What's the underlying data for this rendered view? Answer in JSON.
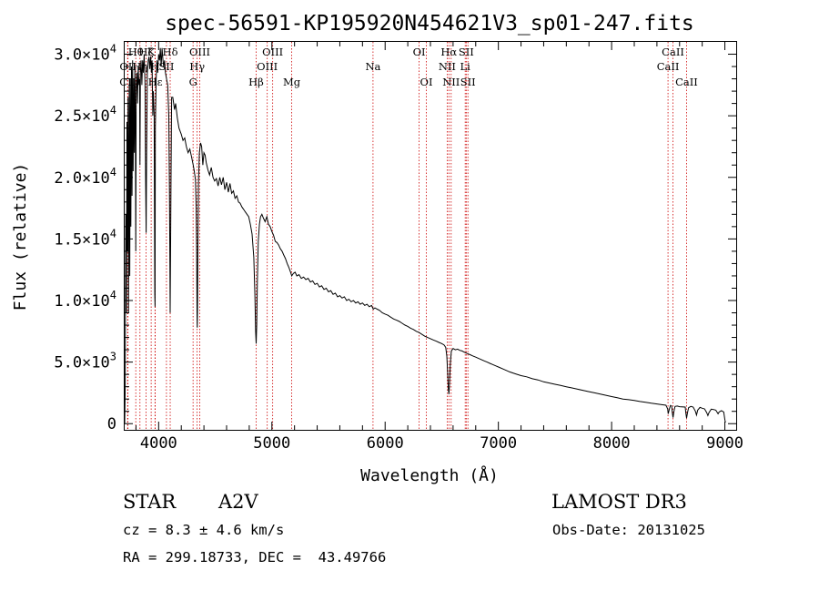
{
  "chart_data": {
    "type": "line",
    "title": "spec-56591-KP195920N454621V3_sp01-247.fits",
    "xlabel": "Wavelength (Å)",
    "ylabel": "Flux (relative)",
    "xlim": [
      3700,
      9100
    ],
    "ylim": [
      -500,
      31000
    ],
    "x_ticks": [
      4000,
      5000,
      6000,
      7000,
      8000,
      9000
    ],
    "x_tick_labels": [
      "4000",
      "5000",
      "6000",
      "7000",
      "8000",
      "9000"
    ],
    "y_ticks": [
      {
        "value": 0,
        "mantissa": "0",
        "exp": ""
      },
      {
        "value": 5000,
        "mantissa": "5.0×10",
        "exp": "3"
      },
      {
        "value": 10000,
        "mantissa": "1.0×10",
        "exp": "4"
      },
      {
        "value": 15000,
        "mantissa": "1.5×10",
        "exp": "4"
      },
      {
        "value": 20000,
        "mantissa": "2.0×10",
        "exp": "4"
      },
      {
        "value": 25000,
        "mantissa": "2.5×10",
        "exp": "4"
      },
      {
        "value": 30000,
        "mantissa": "3.0×10",
        "exp": "4"
      }
    ],
    "spectrum": [
      [
        3700,
        0
      ],
      [
        3705,
        3000
      ],
      [
        3710,
        17000
      ],
      [
        3715,
        9000
      ],
      [
        3720,
        24500
      ],
      [
        3725,
        14000
      ],
      [
        3730,
        26500
      ],
      [
        3734,
        9000
      ],
      [
        3740,
        27500
      ],
      [
        3745,
        12000
      ],
      [
        3750,
        28000
      ],
      [
        3755,
        16000
      ],
      [
        3760,
        29000
      ],
      [
        3765,
        18500
      ],
      [
        3770,
        29500
      ],
      [
        3775,
        20500
      ],
      [
        3780,
        28000
      ],
      [
        3785,
        22000
      ],
      [
        3790,
        29000
      ],
      [
        3795,
        23000
      ],
      [
        3798,
        14000
      ],
      [
        3802,
        27500
      ],
      [
        3808,
        28500
      ],
      [
        3813,
        26000
      ],
      [
        3820,
        29000
      ],
      [
        3826,
        27500
      ],
      [
        3832,
        28000
      ],
      [
        3835,
        21000
      ],
      [
        3839,
        28500
      ],
      [
        3845,
        29500
      ],
      [
        3852,
        27500
      ],
      [
        3858,
        29500
      ],
      [
        3865,
        28500
      ],
      [
        3872,
        30000
      ],
      [
        3880,
        27500
      ],
      [
        3885,
        20000
      ],
      [
        3890,
        15500
      ],
      [
        3894,
        22000
      ],
      [
        3900,
        28500
      ],
      [
        3908,
        29500
      ],
      [
        3915,
        29800
      ],
      [
        3922,
        28800
      ],
      [
        3930,
        29800
      ],
      [
        3936,
        28500
      ],
      [
        3942,
        29500
      ],
      [
        3948,
        25000
      ],
      [
        3953,
        27000
      ],
      [
        3960,
        25000
      ],
      [
        3966,
        10500
      ],
      [
        3968,
        9500
      ],
      [
        3971,
        24000
      ],
      [
        3978,
        28000
      ],
      [
        3985,
        29500
      ],
      [
        3992,
        28500
      ],
      [
        4000,
        30000
      ],
      [
        4008,
        29500
      ],
      [
        4015,
        30500
      ],
      [
        4022,
        29000
      ],
      [
        4030,
        30500
      ],
      [
        4038,
        29500
      ],
      [
        4045,
        29000
      ],
      [
        4052,
        29500
      ],
      [
        4060,
        28500
      ],
      [
        4070,
        28000
      ],
      [
        4080,
        27500
      ],
      [
        4090,
        25000
      ],
      [
        4095,
        19000
      ],
      [
        4099,
        13000
      ],
      [
        4102,
        9000
      ],
      [
        4105,
        13500
      ],
      [
        4109,
        19500
      ],
      [
        4115,
        26500
      ],
      [
        4125,
        26500
      ],
      [
        4140,
        25500
      ],
      [
        4150,
        26000
      ],
      [
        4165,
        24800
      ],
      [
        4180,
        24000
      ],
      [
        4200,
        23500
      ],
      [
        4215,
        23000
      ],
      [
        4230,
        23200
      ],
      [
        4245,
        22500
      ],
      [
        4260,
        22000
      ],
      [
        4275,
        22300
      ],
      [
        4290,
        21700
      ],
      [
        4305,
        21000
      ],
      [
        4315,
        20500
      ],
      [
        4325,
        19800
      ],
      [
        4332,
        17500
      ],
      [
        4336,
        14000
      ],
      [
        4339,
        9000
      ],
      [
        4341,
        7800
      ],
      [
        4344,
        10000
      ],
      [
        4347,
        14500
      ],
      [
        4352,
        19500
      ],
      [
        4360,
        22000
      ],
      [
        4370,
        22800
      ],
      [
        4380,
        22500
      ],
      [
        4390,
        21000
      ],
      [
        4400,
        22000
      ],
      [
        4410,
        21800
      ],
      [
        4420,
        21200
      ],
      [
        4435,
        20600
      ],
      [
        4450,
        20200
      ],
      [
        4465,
        20800
      ],
      [
        4480,
        20000
      ],
      [
        4495,
        19700
      ],
      [
        4510,
        19900
      ],
      [
        4525,
        19300
      ],
      [
        4540,
        20000
      ],
      [
        4555,
        19400
      ],
      [
        4570,
        20000
      ],
      [
        4585,
        19000
      ],
      [
        4600,
        19600
      ],
      [
        4615,
        18800
      ],
      [
        4630,
        19500
      ],
      [
        4645,
        18700
      ],
      [
        4660,
        18900
      ],
      [
        4675,
        18300
      ],
      [
        4690,
        18500
      ],
      [
        4705,
        18000
      ],
      [
        4720,
        17900
      ],
      [
        4735,
        17600
      ],
      [
        4750,
        17400
      ],
      [
        4765,
        17200
      ],
      [
        4780,
        17000
      ],
      [
        4795,
        16800
      ],
      [
        4810,
        16200
      ],
      [
        4825,
        15400
      ],
      [
        4840,
        13500
      ],
      [
        4850,
        10500
      ],
      [
        4856,
        7500
      ],
      [
        4861,
        6500
      ],
      [
        4866,
        8000
      ],
      [
        4872,
        11500
      ],
      [
        4880,
        14800
      ],
      [
        4890,
        16200
      ],
      [
        4900,
        16800
      ],
      [
        4912,
        17000
      ],
      [
        4925,
        16700
      ],
      [
        4940,
        16400
      ],
      [
        4955,
        16800
      ],
      [
        4970,
        16200
      ],
      [
        4985,
        16000
      ],
      [
        5000,
        15600
      ],
      [
        5015,
        15300
      ],
      [
        5030,
        14800
      ],
      [
        5045,
        14700
      ],
      [
        5060,
        14500
      ],
      [
        5075,
        14200
      ],
      [
        5090,
        14000
      ],
      [
        5105,
        13700
      ],
      [
        5120,
        13400
      ],
      [
        5135,
        13000
      ],
      [
        5150,
        12700
      ],
      [
        5165,
        12300
      ],
      [
        5175,
        12000
      ],
      [
        5190,
        12200
      ],
      [
        5205,
        12300
      ],
      [
        5220,
        12000
      ],
      [
        5240,
        12100
      ],
      [
        5260,
        11800
      ],
      [
        5280,
        11900
      ],
      [
        5300,
        11700
      ],
      [
        5320,
        11800
      ],
      [
        5340,
        11500
      ],
      [
        5360,
        11600
      ],
      [
        5380,
        11300
      ],
      [
        5400,
        11400
      ],
      [
        5420,
        11100
      ],
      [
        5440,
        11200
      ],
      [
        5460,
        10900
      ],
      [
        5480,
        11000
      ],
      [
        5500,
        10700
      ],
      [
        5520,
        10800
      ],
      [
        5540,
        10500
      ],
      [
        5560,
        10600
      ],
      [
        5580,
        10300
      ],
      [
        5600,
        10400
      ],
      [
        5620,
        10200
      ],
      [
        5640,
        10300
      ],
      [
        5660,
        10000
      ],
      [
        5680,
        10100
      ],
      [
        5700,
        9900
      ],
      [
        5720,
        10000
      ],
      [
        5740,
        9800
      ],
      [
        5760,
        9900
      ],
      [
        5780,
        9700
      ],
      [
        5800,
        9800
      ],
      [
        5820,
        9600
      ],
      [
        5840,
        9700
      ],
      [
        5860,
        9500
      ],
      [
        5880,
        9600
      ],
      [
        5895,
        9300
      ],
      [
        5910,
        9400
      ],
      [
        5930,
        9300
      ],
      [
        5950,
        9200
      ],
      [
        5975,
        9000
      ],
      [
        6000,
        8900
      ],
      [
        6025,
        8800
      ],
      [
        6050,
        8650
      ],
      [
        6075,
        8500
      ],
      [
        6100,
        8400
      ],
      [
        6125,
        8300
      ],
      [
        6150,
        8150
      ],
      [
        6175,
        8000
      ],
      [
        6200,
        7900
      ],
      [
        6225,
        7750
      ],
      [
        6250,
        7650
      ],
      [
        6275,
        7500
      ],
      [
        6300,
        7400
      ],
      [
        6325,
        7250
      ],
      [
        6350,
        7100
      ],
      [
        6375,
        7000
      ],
      [
        6400,
        6900
      ],
      [
        6425,
        6800
      ],
      [
        6450,
        6700
      ],
      [
        6475,
        6600
      ],
      [
        6500,
        6500
      ],
      [
        6520,
        6400
      ],
      [
        6535,
        6200
      ],
      [
        6545,
        5500
      ],
      [
        6552,
        4200
      ],
      [
        6558,
        2800
      ],
      [
        6563,
        2400
      ],
      [
        6568,
        3100
      ],
      [
        6575,
        4800
      ],
      [
        6585,
        5900
      ],
      [
        6600,
        6100
      ],
      [
        6620,
        6000
      ],
      [
        6640,
        6050
      ],
      [
        6660,
        5950
      ],
      [
        6680,
        5900
      ],
      [
        6700,
        5800
      ],
      [
        6725,
        5700
      ],
      [
        6750,
        5600
      ],
      [
        6775,
        5500
      ],
      [
        6800,
        5400
      ],
      [
        6825,
        5300
      ],
      [
        6850,
        5200
      ],
      [
        6875,
        5100
      ],
      [
        6900,
        5000
      ],
      [
        6925,
        4900
      ],
      [
        6950,
        4800
      ],
      [
        6975,
        4700
      ],
      [
        7000,
        4600
      ],
      [
        7050,
        4400
      ],
      [
        7100,
        4200
      ],
      [
        7150,
        4050
      ],
      [
        7200,
        3900
      ],
      [
        7250,
        3800
      ],
      [
        7300,
        3650
      ],
      [
        7350,
        3550
      ],
      [
        7400,
        3400
      ],
      [
        7450,
        3300
      ],
      [
        7500,
        3200
      ],
      [
        7550,
        3100
      ],
      [
        7600,
        3000
      ],
      [
        7650,
        2900
      ],
      [
        7700,
        2800
      ],
      [
        7750,
        2700
      ],
      [
        7800,
        2600
      ],
      [
        7850,
        2500
      ],
      [
        7900,
        2400
      ],
      [
        7950,
        2300
      ],
      [
        8000,
        2200
      ],
      [
        8050,
        2100
      ],
      [
        8100,
        2000
      ],
      [
        8150,
        1950
      ],
      [
        8200,
        1880
      ],
      [
        8250,
        1800
      ],
      [
        8300,
        1730
      ],
      [
        8350,
        1660
      ],
      [
        8400,
        1600
      ],
      [
        8450,
        1530
      ],
      [
        8480,
        1500
      ],
      [
        8495,
        1200
      ],
      [
        8500,
        800
      ],
      [
        8510,
        1200
      ],
      [
        8520,
        1480
      ],
      [
        8530,
        1420
      ],
      [
        8535,
        950
      ],
      [
        8542,
        500
      ],
      [
        8550,
        1000
      ],
      [
        8560,
        1400
      ],
      [
        8580,
        1430
      ],
      [
        8600,
        1380
      ],
      [
        8650,
        1350
      ],
      [
        8655,
        900
      ],
      [
        8662,
        450
      ],
      [
        8670,
        900
      ],
      [
        8680,
        1300
      ],
      [
        8700,
        1400
      ],
      [
        8720,
        1350
      ],
      [
        8740,
        1000
      ],
      [
        8750,
        700
      ],
      [
        8760,
        1100
      ],
      [
        8780,
        1320
      ],
      [
        8800,
        1250
      ],
      [
        8820,
        1200
      ],
      [
        8840,
        900
      ],
      [
        8850,
        650
      ],
      [
        8860,
        900
      ],
      [
        8880,
        1180
      ],
      [
        8900,
        1150
      ],
      [
        8920,
        1100
      ],
      [
        8940,
        800
      ],
      [
        8950,
        950
      ],
      [
        8970,
        1050
      ],
      [
        8990,
        950
      ],
      [
        9000,
        300
      ],
      [
        9005,
        100
      ]
    ],
    "lines": [
      {
        "label": "CII",
        "x": 3726,
        "row": 3
      },
      {
        "label": "OII",
        "x": 3729,
        "row": 2
      },
      {
        "label": "Hθ",
        "x": 3798,
        "row": 1
      },
      {
        "label": "Hη",
        "x": 3835,
        "row": 2
      },
      {
        "label": "Hζ",
        "x": 3889,
        "row": 1
      },
      {
        "label": "Hε",
        "x": 3970,
        "row": 3
      },
      {
        "label": "K",
        "x": 3934,
        "row": 1
      },
      {
        "label": "H",
        "x": 3968,
        "row": 2
      },
      {
        "label": "SII",
        "x": 4069,
        "row": 2
      },
      {
        "label": "Hδ",
        "x": 4102,
        "row": 1
      },
      {
        "label": "G",
        "x": 4304,
        "row": 3
      },
      {
        "label": "Hγ",
        "x": 4340,
        "row": 2
      },
      {
        "label": "OIII",
        "x": 4363,
        "row": 1
      },
      {
        "label": "Hβ",
        "x": 4861,
        "row": 3
      },
      {
        "label": "OIII",
        "x": 4959,
        "row": 2
      },
      {
        "label": "OIII",
        "x": 5007,
        "row": 1
      },
      {
        "label": "Mg",
        "x": 5175,
        "row": 3
      },
      {
        "label": "Na",
        "x": 5893,
        "row": 2
      },
      {
        "label": "OI",
        "x": 6300,
        "row": 1
      },
      {
        "label": "OI",
        "x": 6364,
        "row": 3
      },
      {
        "label": "NII",
        "x": 6548,
        "row": 2
      },
      {
        "label": "Hα",
        "x": 6563,
        "row": 1
      },
      {
        "label": "NII",
        "x": 6583,
        "row": 3
      },
      {
        "label": "Li",
        "x": 6707,
        "row": 2
      },
      {
        "label": "SII",
        "x": 6716,
        "row": 1
      },
      {
        "label": "SII",
        "x": 6731,
        "row": 3
      },
      {
        "label": "CaII",
        "x": 8498,
        "row": 2
      },
      {
        "label": "CaII",
        "x": 8542,
        "row": 1
      },
      {
        "label": "CaII",
        "x": 8662,
        "row": 3
      }
    ],
    "line_color": "#000000",
    "marker_color": "#cc0000"
  },
  "info": {
    "object_class": "STAR",
    "subclass": "A2V",
    "survey": "LAMOST DR3",
    "cz": "cz = 8.3 ± 4.6 km/s",
    "obs_date": "Obs-Date: 20131025",
    "coords": "RA = 299.18733, DEC =  43.49766"
  }
}
